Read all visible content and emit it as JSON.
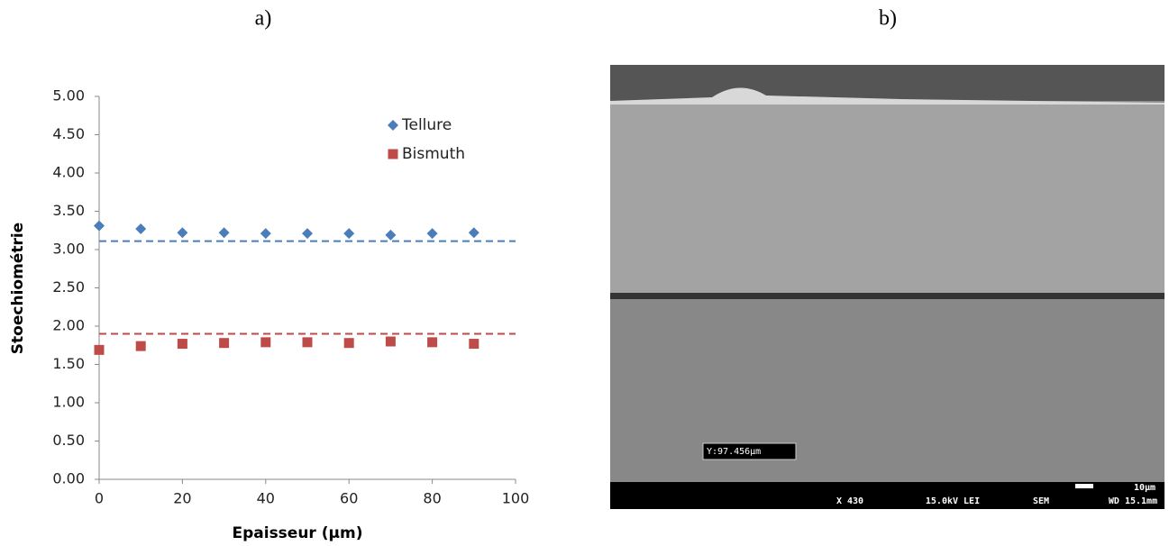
{
  "panel_labels": [
    "a)",
    "b)"
  ],
  "chart_data": {
    "type": "scatter",
    "xlabel": "Epaisseur (µm)",
    "ylabel": "Stoechiométrie",
    "x": [
      0,
      10,
      20,
      30,
      40,
      50,
      60,
      70,
      80,
      90
    ],
    "series": [
      {
        "name": "Tellure",
        "color": "#4a7ebb",
        "marker": "diamond",
        "values": [
          3.31,
          3.27,
          3.22,
          3.22,
          3.21,
          3.21,
          3.21,
          3.19,
          3.21,
          3.22
        ]
      },
      {
        "name": "Bismuth",
        "color": "#be4b48",
        "marker": "square",
        "values": [
          1.69,
          1.74,
          1.77,
          1.78,
          1.79,
          1.79,
          1.78,
          1.8,
          1.79,
          1.77
        ]
      }
    ],
    "reference_lines": [
      {
        "value": 3.11,
        "color": "#4a7ebb"
      },
      {
        "value": 1.9,
        "color": "#be4b48"
      }
    ],
    "xlim": [
      0,
      100
    ],
    "xticks": [
      0,
      20,
      40,
      60,
      80,
      100
    ],
    "ylim": [
      0,
      5
    ],
    "yticks": [
      {
        "value": 0,
        "label": "0.00"
      },
      {
        "value": 0.5,
        "label": "0.50"
      },
      {
        "value": 1,
        "label": "1.00"
      },
      {
        "value": 1.5,
        "label": "1.50"
      },
      {
        "value": 2,
        "label": "2.00"
      },
      {
        "value": 2.5,
        "label": "2.50"
      },
      {
        "value": 3,
        "label": "3.00"
      },
      {
        "value": 3.5,
        "label": "3.50"
      },
      {
        "value": 4,
        "label": "4.00"
      },
      {
        "value": 4.5,
        "label": "4.50"
      },
      {
        "value": 5,
        "label": "5.00"
      }
    ],
    "legend": "upper right"
  },
  "sem_image": {
    "measurement": "Y:97.456µm",
    "scale": "10µm",
    "info": [
      "X 430",
      "15.0kV LEI",
      "SEM",
      "WD 15.1mm"
    ]
  }
}
